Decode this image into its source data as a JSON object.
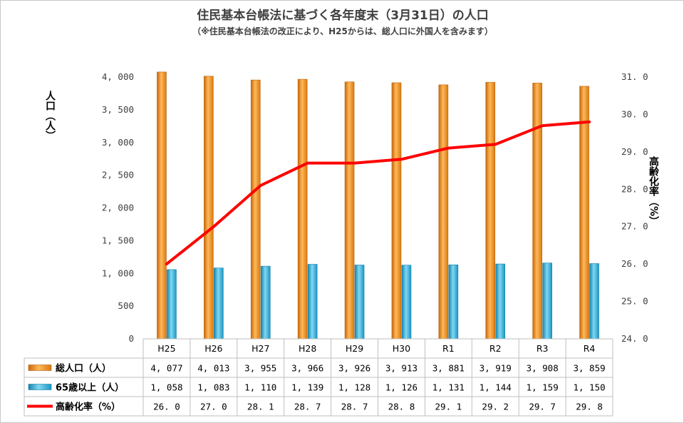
{
  "title": "住民基本台帳法に基づく各年度末（3月31日）の人口",
  "subtitle": "（※住民基本台帳法の改正により、H25からは、総人口に外国人を含みます）",
  "chart_data": {
    "type": "bar",
    "categories": [
      "H25",
      "H26",
      "H27",
      "H28",
      "H29",
      "H30",
      "R1",
      "R2",
      "R3",
      "R4"
    ],
    "series": [
      {
        "name": "総人口（人）",
        "kind": "bar",
        "axis": "left",
        "color": "#f0961e",
        "values": [
          4077,
          4013,
          3955,
          3966,
          3926,
          3913,
          3881,
          3919,
          3908,
          3859
        ],
        "labels": [
          "4, 077",
          "4, 013",
          "3, 955",
          "3, 966",
          "3, 926",
          "3, 913",
          "3, 881",
          "3, 919",
          "3, 908",
          "3, 859"
        ]
      },
      {
        "name": "65歳以上（人）",
        "kind": "bar",
        "axis": "left",
        "color": "#2eaad6",
        "values": [
          1058,
          1083,
          1110,
          1139,
          1128,
          1126,
          1131,
          1144,
          1159,
          1150
        ],
        "labels": [
          "1, 058",
          "1, 083",
          "1, 110",
          "1, 139",
          "1, 128",
          "1, 126",
          "1, 131",
          "1, 144",
          "1, 159",
          "1, 150"
        ]
      },
      {
        "name": "高齢化率（%）",
        "kind": "line",
        "axis": "right",
        "color": "#ff0000",
        "values": [
          26.0,
          27.0,
          28.1,
          28.7,
          28.7,
          28.8,
          29.1,
          29.2,
          29.7,
          29.8
        ],
        "labels": [
          "26. 0",
          "27. 0",
          "28. 1",
          "28. 7",
          "28. 7",
          "28. 8",
          "29. 1",
          "29. 2",
          "29. 7",
          "29. 8"
        ]
      }
    ],
    "ylabel_left": "人口（人）",
    "ylabel_right": "高齢化率（%）",
    "ylim_left": [
      0,
      4000
    ],
    "ylim_right": [
      24.0,
      31.0
    ],
    "yticks_left": [
      "0",
      "500",
      "1, 000",
      "1, 500",
      "2, 000",
      "2, 500",
      "3, 000",
      "3, 500",
      "4, 000"
    ],
    "yticks_right": [
      "24. 0",
      "25. 0",
      "26. 0",
      "27. 0",
      "28. 0",
      "29. 0",
      "30. 0",
      "31. 0"
    ],
    "grid": false,
    "legend": "data-table"
  }
}
